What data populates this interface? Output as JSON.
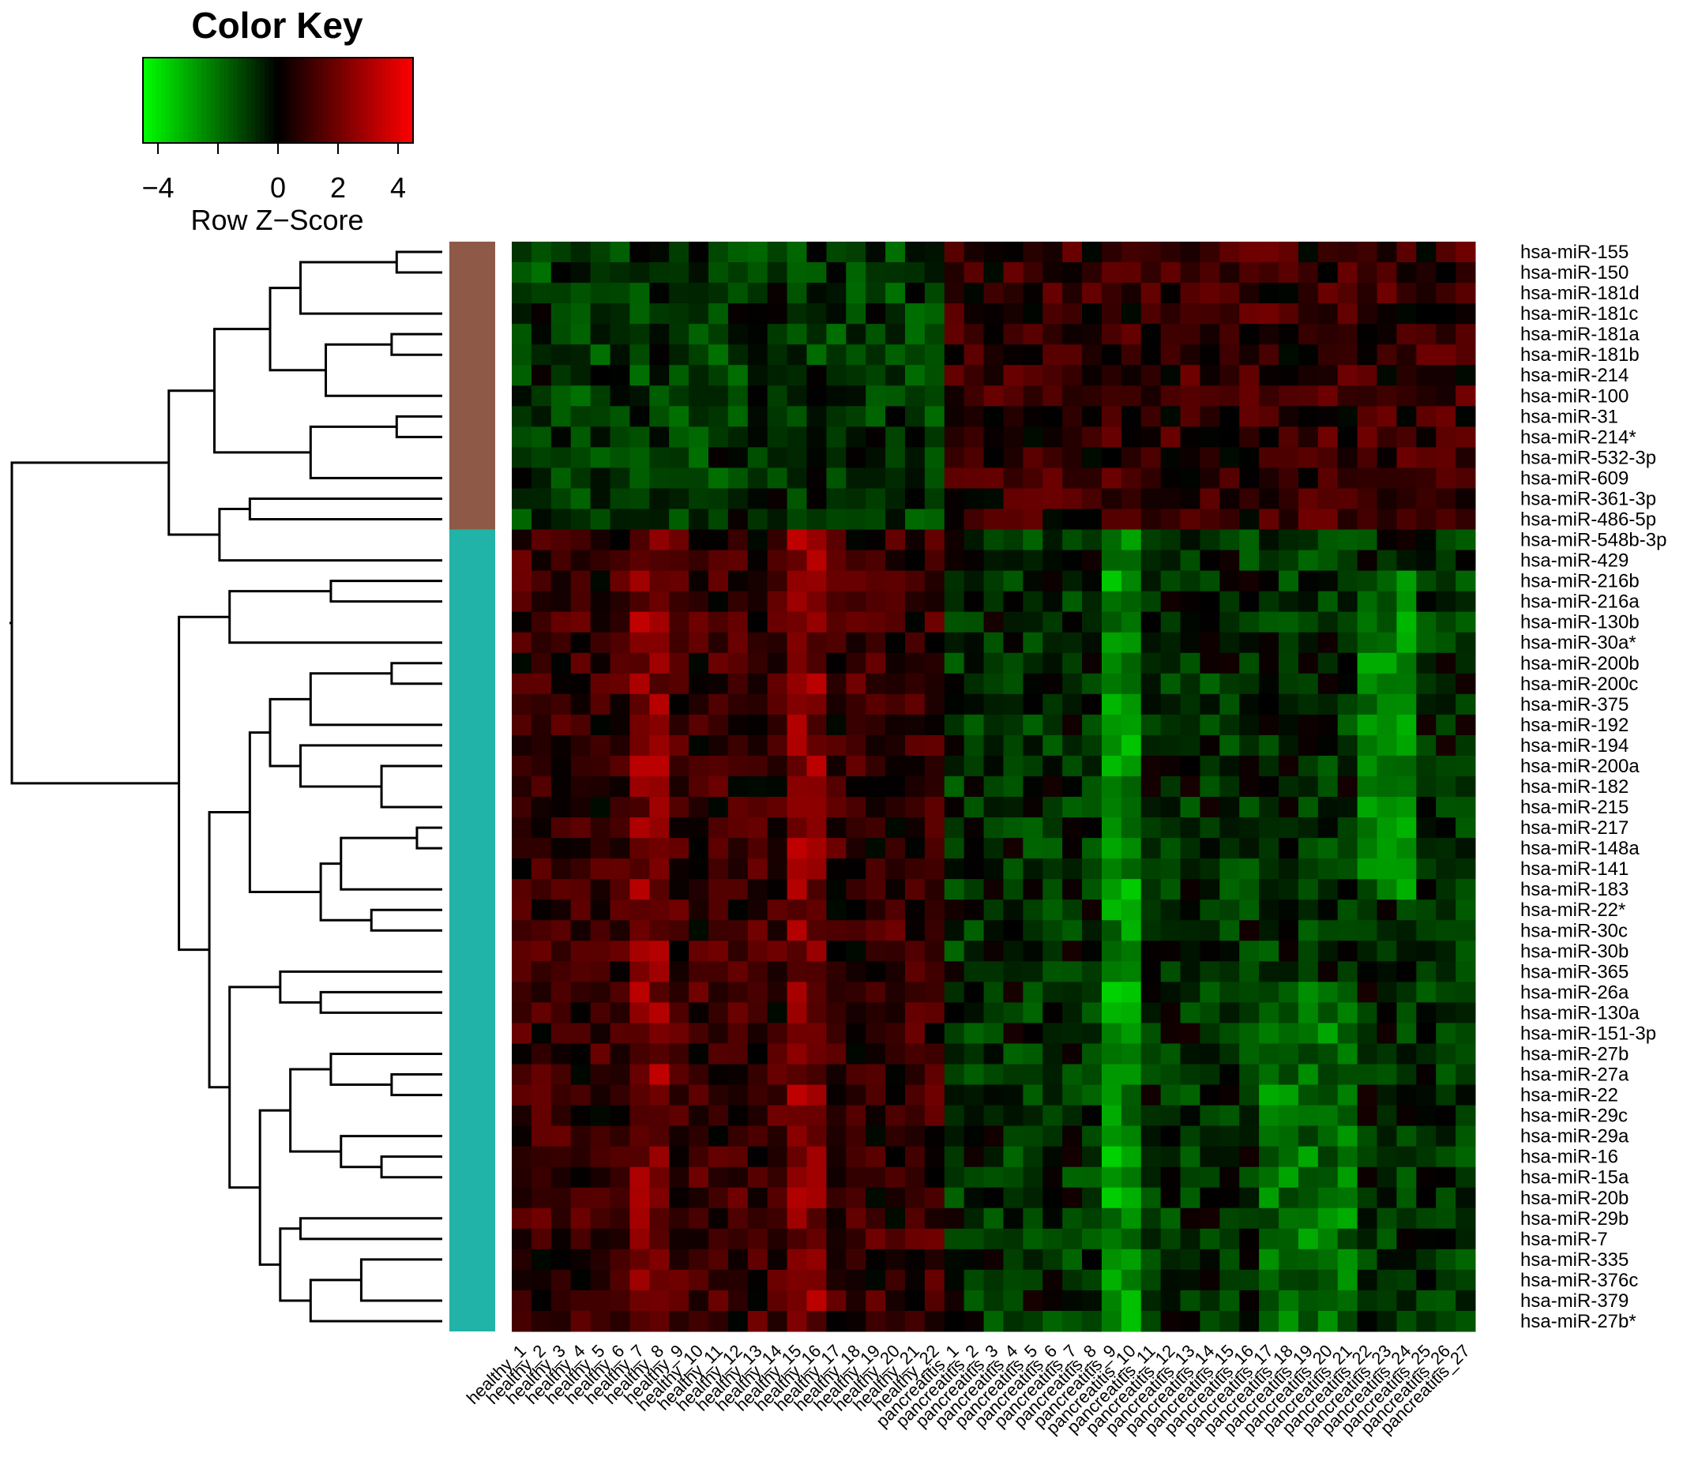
{
  "chart_data": {
    "type": "heatmap",
    "color_key": {
      "title": "Color Key",
      "xlabel": "Row Z−Score",
      "range": [
        -4.5,
        4.5
      ],
      "ticks": [
        -4,
        -2,
        0,
        2,
        4
      ],
      "tick_labels": [
        "−4",
        "",
        "0",
        "2",
        "4"
      ],
      "colors": {
        "low": "#00ff00",
        "mid": "#000000",
        "high": "#ff0000"
      }
    },
    "rows": [
      "hsa-miR-155",
      "hsa-miR-150",
      "hsa-miR-181d",
      "hsa-miR-181c",
      "hsa-miR-181a",
      "hsa-miR-181b",
      "hsa-miR-214",
      "hsa-miR-100",
      "hsa-miR-31",
      "hsa-miR-214*",
      "hsa-miR-532-3p",
      "hsa-miR-609",
      "hsa-miR-361-3p",
      "hsa-miR-486-5p",
      "hsa-miR-548b-3p",
      "hsa-miR-429",
      "hsa-miR-216b",
      "hsa-miR-216a",
      "hsa-miR-130b",
      "hsa-miR-30a*",
      "hsa-miR-200b",
      "hsa-miR-200c",
      "hsa-miR-375",
      "hsa-miR-192",
      "hsa-miR-194",
      "hsa-miR-200a",
      "hsa-miR-182",
      "hsa-miR-215",
      "hsa-miR-217",
      "hsa-miR-148a",
      "hsa-miR-141",
      "hsa-miR-183",
      "hsa-miR-22*",
      "hsa-miR-30c",
      "hsa-miR-30b",
      "hsa-miR-365",
      "hsa-miR-26a",
      "hsa-miR-130a",
      "hsa-miR-151-3p",
      "hsa-miR-27b",
      "hsa-miR-27a",
      "hsa-miR-22",
      "hsa-miR-29c",
      "hsa-miR-29a",
      "hsa-miR-16",
      "hsa-miR-15a",
      "hsa-miR-20b",
      "hsa-miR-29b",
      "hsa-miR-7",
      "hsa-miR-335",
      "hsa-miR-376c",
      "hsa-miR-379",
      "hsa-miR-27b*"
    ],
    "columns": [
      "healthy_1",
      "healthy_2",
      "healthy_3",
      "healthy_4",
      "healthy_5",
      "healthy_6",
      "healthy_7",
      "healthy_8",
      "healthy_9",
      "healthy_10",
      "healthy_11",
      "healthy_12",
      "healthy_13",
      "healthy_14",
      "healthy_15",
      "healthy_16",
      "healthy_17",
      "healthy_18",
      "healthy_19",
      "healthy_20",
      "healthy_21",
      "healthy_22",
      "pancreatitis_1",
      "pancreatitis_2",
      "pancreatitis_3",
      "pancreatitis_4",
      "pancreatitis_5",
      "pancreatitis_6",
      "pancreatitis_7",
      "pancreatitis_8",
      "pancreatitis_9",
      "pancreatitis_10",
      "pancreatitis_11",
      "pancreatitis_12",
      "pancreatitis_13",
      "pancreatitis_14",
      "pancreatitis_15",
      "pancreatitis_16",
      "pancreatitis_17",
      "pancreatitis_18",
      "pancreatitis_19",
      "pancreatitis_20",
      "pancreatitis_21",
      "pancreatitis_22",
      "pancreatitis_23",
      "pancreatitis_24",
      "pancreatitis_25",
      "pancreatitis_26",
      "pancreatitis_27"
    ],
    "row_clusters": [
      {
        "rows": [
          0,
          13
        ],
        "color": "#8e5a47"
      },
      {
        "rows": [
          14,
          52
        ],
        "color": "#22b3a8"
      }
    ]
  }
}
